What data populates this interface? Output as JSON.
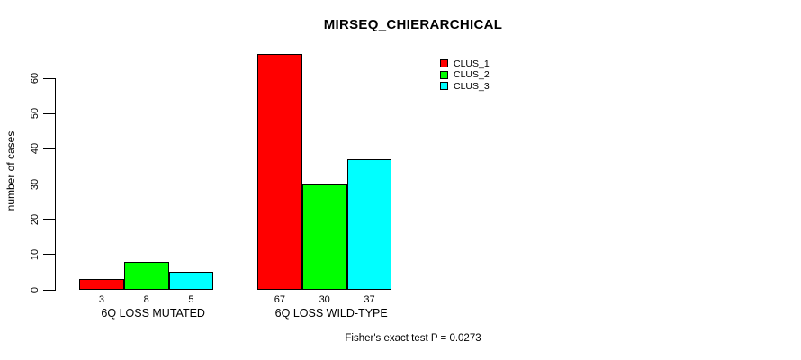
{
  "title": "MIRSEQ_CHIERARCHICAL",
  "chart_data": {
    "type": "bar",
    "title": "MIRSEQ_CHIERARCHICAL",
    "xlabel": "",
    "ylabel": "number of cases",
    "ylim": [
      0,
      60
    ],
    "yticks": [
      0,
      10,
      20,
      30,
      40,
      50,
      60
    ],
    "grid": false,
    "legend_position": "top-right",
    "categories": [
      "6Q LOSS MUTATED",
      "6Q LOSS WILD-TYPE"
    ],
    "series": [
      {
        "name": "CLUS_1",
        "color": "#ff0000",
        "values": [
          3,
          67
        ]
      },
      {
        "name": "CLUS_2",
        "color": "#00ff00",
        "values": [
          8,
          30
        ]
      },
      {
        "name": "CLUS_3",
        "color": "#00ffff",
        "values": [
          5,
          37
        ]
      }
    ],
    "bar_value_labels": [
      [
        "3",
        "8",
        "5"
      ],
      [
        "67",
        "30",
        "37"
      ]
    ],
    "annotation": "Fisher's exact test P = 0.0273"
  },
  "colors": {
    "background": "#ffffff",
    "axis": "#000000",
    "bar_border": "#000000",
    "text": "#000000"
  }
}
